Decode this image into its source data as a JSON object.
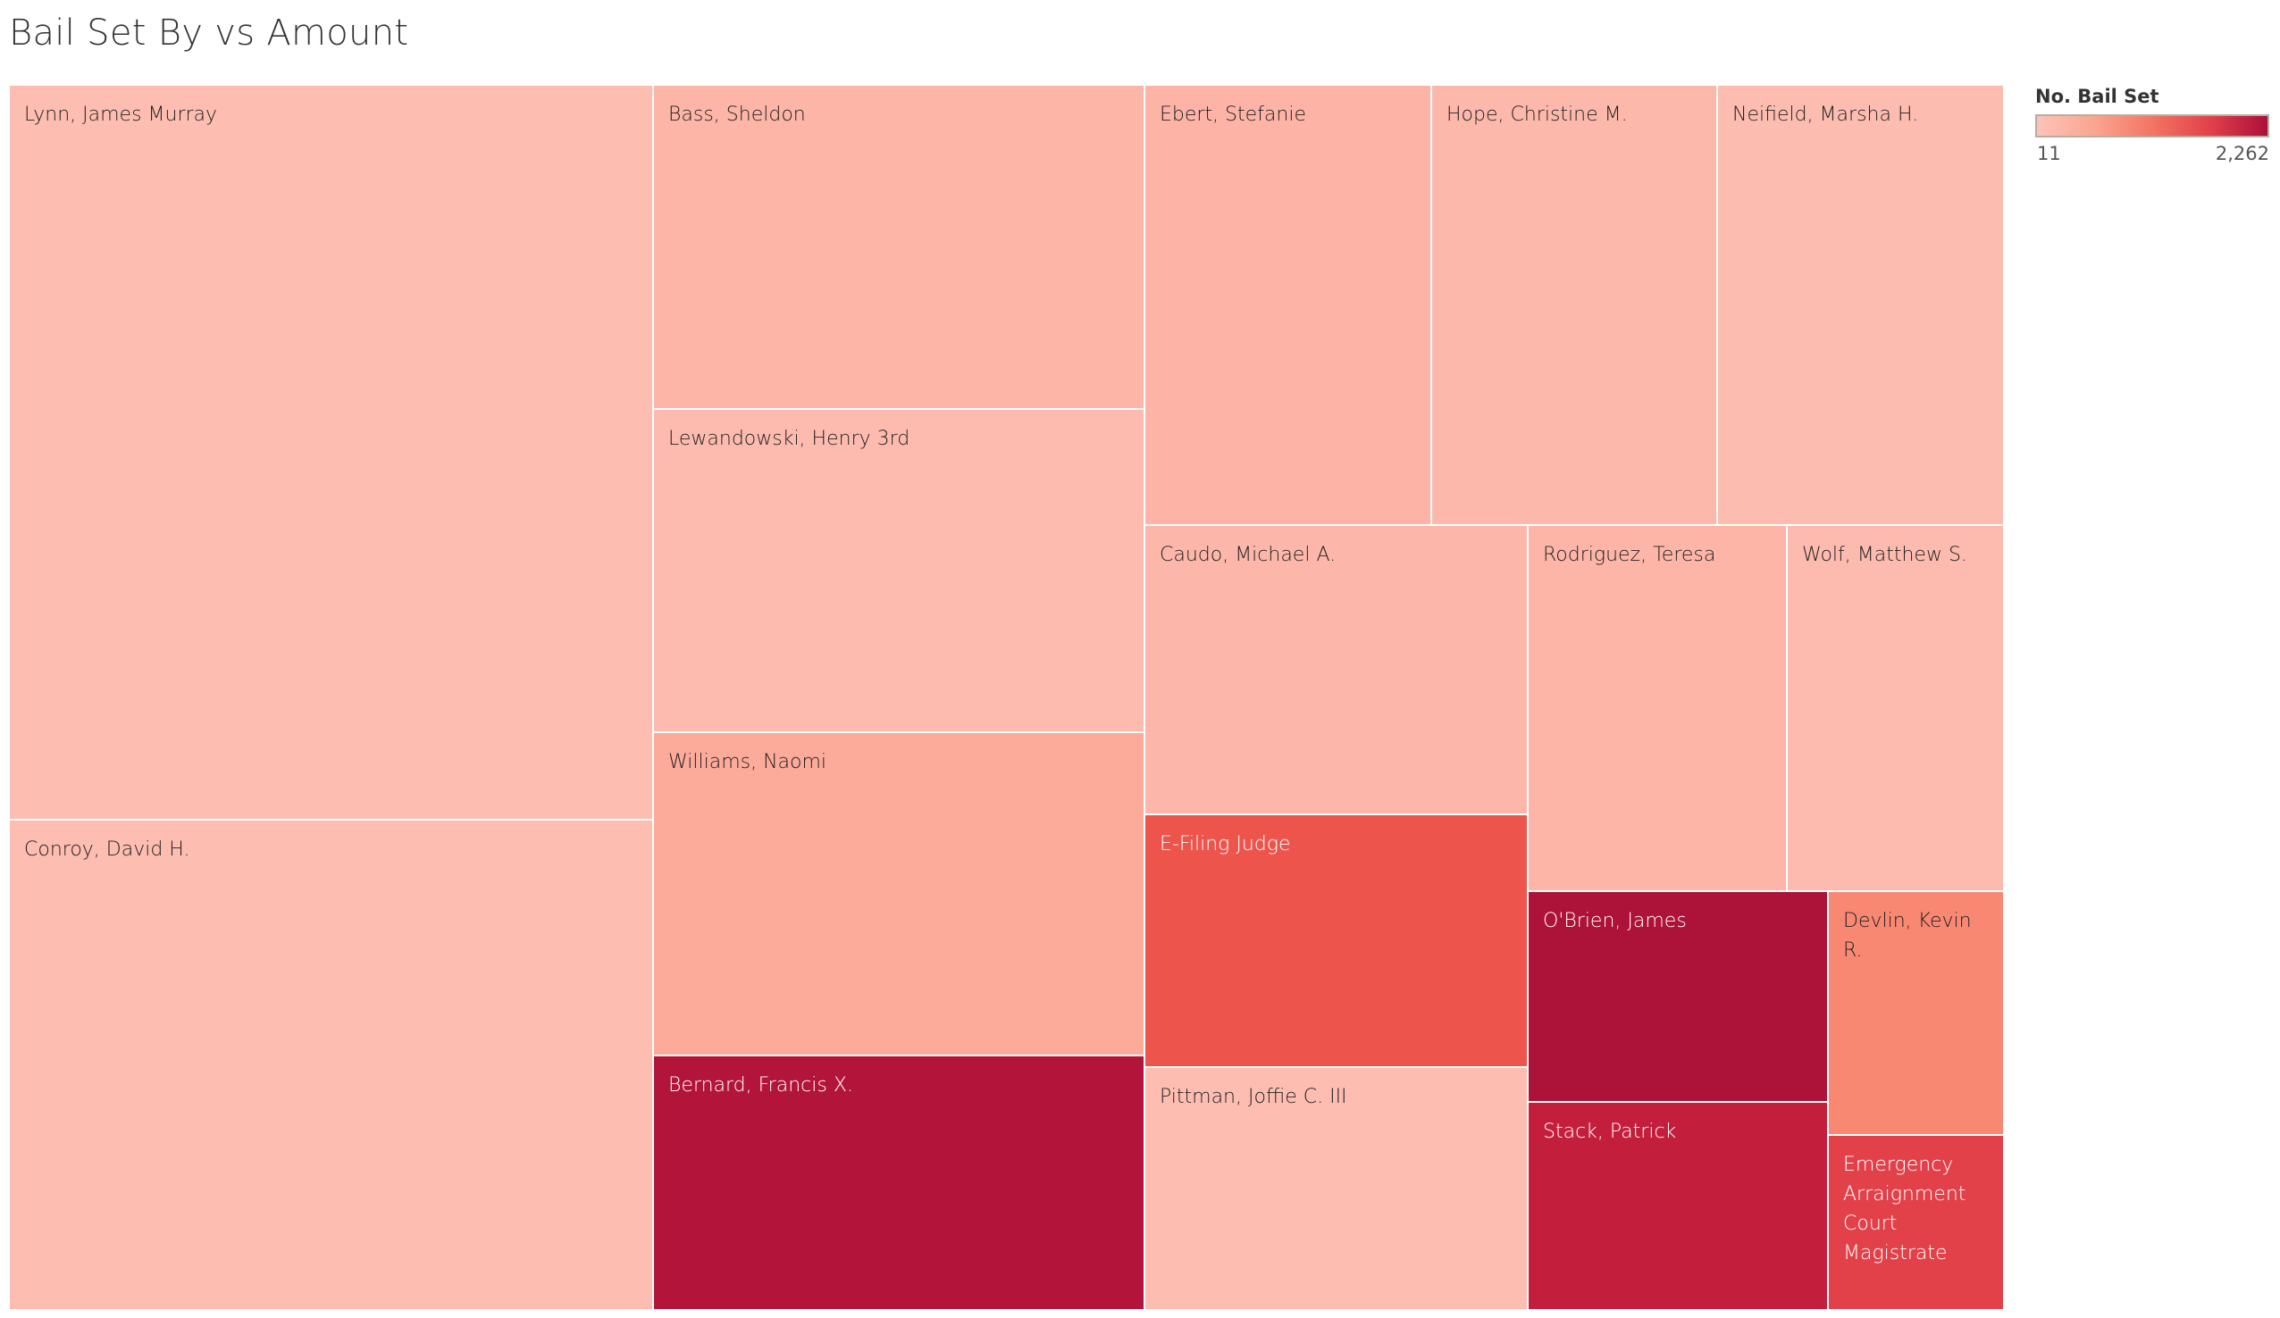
{
  "chart_data": {
    "type": "treemap",
    "title": "Bail Set By vs Amount",
    "size_measure": "Amount",
    "color_measure": "No. Bail Set",
    "size_units": "percent of total amount (estimated from area)",
    "legend": {
      "title": "No. Bail Set",
      "min_label": "11",
      "max_label": "2,262",
      "min": 11,
      "max": 2262,
      "placement": "top-right",
      "colors": [
        "#FCC3B8",
        "#FBA58F",
        "#F27562",
        "#E2414A",
        "#AB0F3A"
      ]
    },
    "items": [
      {
        "label": "Lynn, James Murray",
        "amount_share": 20.7,
        "bail_count_est": 30,
        "color": "#FDBDB1",
        "text_color": "#222222"
      },
      {
        "label": "Conroy, David H.",
        "amount_share": 13.8,
        "bail_count_est": 30,
        "color": "#FDBDB1",
        "text_color": "#222222"
      },
      {
        "label": "Bass, Sheldon",
        "amount_share": 7.0,
        "bail_count_est": 150,
        "color": "#FDB5A8",
        "text_color": "#222222"
      },
      {
        "label": "Lewandowski, Henry 3rd",
        "amount_share": 7.0,
        "bail_count_est": 40,
        "color": "#FDBBAF",
        "text_color": "#222222"
      },
      {
        "label": "Williams, Naomi",
        "amount_share": 7.0,
        "bail_count_est": 300,
        "color": "#FCAA9A",
        "text_color": "#222222"
      },
      {
        "label": "Bernard, Francis X.",
        "amount_share": 5.5,
        "bail_count_est": 2100,
        "color": "#B3153A",
        "text_color": "#FFFFFF"
      },
      {
        "label": "Ebert, Stefanie",
        "amount_share": 5.5,
        "bail_count_est": 160,
        "color": "#FDB4A7",
        "text_color": "#222222"
      },
      {
        "label": "Hope, Christine M.",
        "amount_share": 5.5,
        "bail_count_est": 90,
        "color": "#FDB8AC",
        "text_color": "#222222"
      },
      {
        "label": "Neifield, Marsha H.",
        "amount_share": 5.5,
        "bail_count_est": 40,
        "color": "#FDBCB0",
        "text_color": "#222222"
      },
      {
        "label": "Caudo, Michael A.",
        "amount_share": 4.9,
        "bail_count_est": 120,
        "color": "#FDB7AA",
        "text_color": "#222222"
      },
      {
        "label": "E-Filing Judge",
        "amount_share": 4.2,
        "bail_count_est": 1200,
        "color": "#EC544C",
        "text_color": "#FFFFFF"
      },
      {
        "label": "Pittman, Joffie C. III",
        "amount_share": 4.1,
        "bail_count_est": 25,
        "color": "#FDBDB1",
        "text_color": "#222222"
      },
      {
        "label": "Rodriguez, Teresa",
        "amount_share": 4.2,
        "bail_count_est": 150,
        "color": "#FDB5A8",
        "text_color": "#222222"
      },
      {
        "label": "Wolf, Matthew S.",
        "amount_share": 3.5,
        "bail_count_est": 70,
        "color": "#FDBAAE",
        "text_color": "#222222"
      },
      {
        "label": "O'Brien, James",
        "amount_share": 2.8,
        "bail_count_est": 2262,
        "color": "#AD1238",
        "text_color": "#FFFFFF"
      },
      {
        "label": "Stack, Patrick",
        "amount_share": 2.7,
        "bail_count_est": 1900,
        "color": "#C41E3D",
        "text_color": "#FFFFFF"
      },
      {
        "label": "Devlin, Kevin R.",
        "amount_share": 1.9,
        "bail_count_est": 700,
        "color": "#F98873",
        "text_color": "#222222"
      },
      {
        "label": "Emergency Arraignment Court Magistrate",
        "amount_share": 1.3,
        "bail_count_est": 1500,
        "color": "#E2414A",
        "text_color": "#FFFFFF"
      }
    ]
  }
}
